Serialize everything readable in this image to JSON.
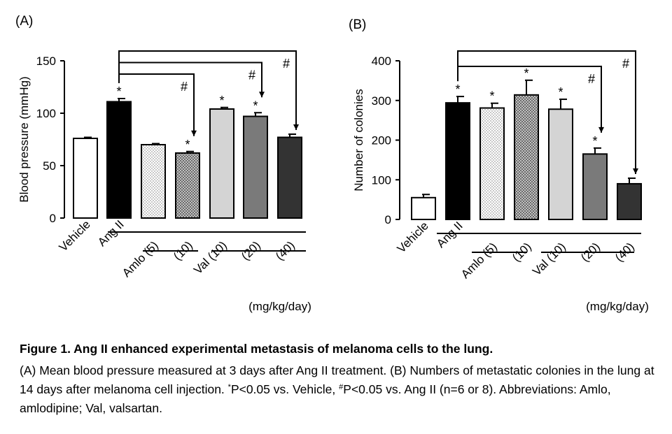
{
  "chart_data": [
    {
      "type": "bar",
      "panel_label": "(A)",
      "ylabel": "Blood pressure (mmHg)",
      "ylim": [
        0,
        150
      ],
      "yticks": [
        0,
        50,
        100,
        150
      ],
      "categories": [
        "Vehicle",
        "Ang II",
        "Amlo (5)",
        "(10)",
        "Val (10)",
        "(20)",
        "(40)"
      ],
      "values": [
        76,
        111,
        70,
        62,
        104,
        97,
        77
      ],
      "errors": [
        1,
        3,
        1,
        1.5,
        1.5,
        3.5,
        3
      ],
      "bar_fills": [
        "white",
        "black",
        "dots",
        "crosshatch",
        "lightgray",
        "gray",
        "darkgray"
      ],
      "stars": [
        false,
        true,
        false,
        true,
        true,
        true,
        false
      ],
      "star_symbol": "*",
      "hash_symbol": "#",
      "comparisons": [
        {
          "from": "Ang II",
          "to": "(10)",
          "label": "#"
        },
        {
          "from": "Ang II",
          "to": "(20)",
          "label": "#"
        },
        {
          "from": "Ang II",
          "to": "(40)",
          "label": "#"
        }
      ],
      "unit_label": "(mg/kg/day)"
    },
    {
      "type": "bar",
      "panel_label": "(B)",
      "ylabel": "Number of colonies",
      "ylim": [
        0,
        400
      ],
      "yticks": [
        0,
        100,
        200,
        300,
        400
      ],
      "categories": [
        "Vehicle",
        "Ang II",
        "Amlo (5)",
        "(10)",
        "Val (10)",
        "(20)",
        "(40)"
      ],
      "values": [
        55,
        294,
        281,
        314,
        278,
        165,
        90
      ],
      "errors": [
        8,
        16,
        12,
        37,
        25,
        15,
        14
      ],
      "bar_fills": [
        "white",
        "black",
        "dots",
        "crosshatch",
        "lightgray",
        "gray",
        "darkgray"
      ],
      "stars": [
        false,
        true,
        true,
        true,
        true,
        true,
        false
      ],
      "star_symbol": "*",
      "hash_symbol": "#",
      "comparisons": [
        {
          "from": "Ang II",
          "to": "(20)",
          "label": "#"
        },
        {
          "from": "Ang II",
          "to": "(40)",
          "label": "#"
        }
      ],
      "unit_label": "(mg/kg/day)"
    }
  ],
  "caption": {
    "title": "Figure 1. Ang II enhanced experimental metastasis of melanoma cells to the lung.",
    "line1": " (A) Mean blood pressure measured at 3 days after Ang II treatment. (B) Numbers of metastatic colonies in the lung at 14 days after melanoma cell injection. ",
    "sup1": "*",
    "line2": "P<0.05 vs. Vehicle, ",
    "sup2": "#",
    "line3": "P<0.05 vs. Ang II (n=6 or 8). Abbreviations: Amlo, amlodipine; Val, valsartan."
  }
}
